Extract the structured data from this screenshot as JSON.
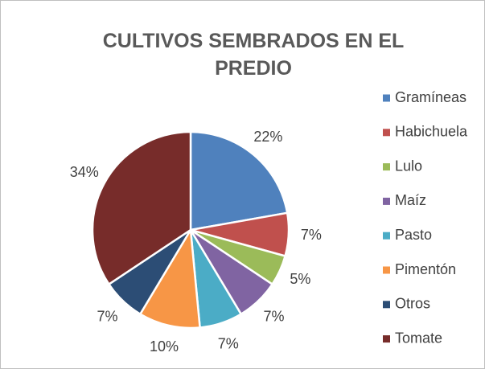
{
  "chart_data": {
    "type": "pie",
    "title": "CULTIVOS SEMBRADOS EN EL PREDIO",
    "categories": [
      "Gramíneas",
      "Habichuela",
      "Lulo",
      "Maíz",
      "Pasto",
      "Pimentón",
      "Otros",
      "Tomate"
    ],
    "values": [
      22,
      7,
      5,
      7,
      7,
      10,
      7,
      34
    ],
    "value_labels": [
      "22%",
      "7%",
      "5%",
      "7%",
      "7%",
      "10%",
      "7%",
      "34%"
    ],
    "colors": [
      "#4f81bd",
      "#c0504d",
      "#9bbb59",
      "#8064a2",
      "#4bacc6",
      "#f79646",
      "#2c4d75",
      "#772c2a"
    ],
    "legend": "right"
  }
}
